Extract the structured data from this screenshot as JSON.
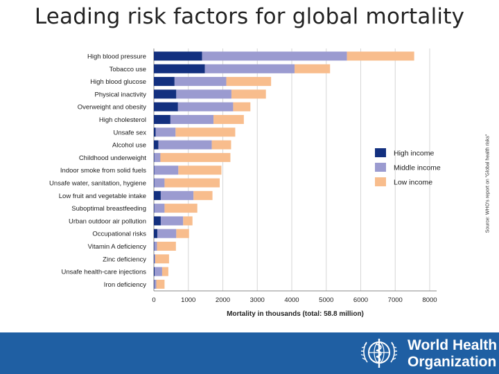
{
  "page_title": "Leading risk factors for global mortality",
  "source_note": "Source: WHO's report on \"Global health risks\"",
  "footer": {
    "org_line1": "World Health",
    "org_line2": "Organization"
  },
  "colors": {
    "high": "#13307f",
    "middle": "#9b9bd0",
    "low": "#f8bd8d",
    "footer": "#1f5fa3"
  },
  "chart_data": {
    "type": "bar",
    "orientation": "horizontal",
    "stacked": true,
    "xlabel": "Mortality in thousands (total: 58.8 million)",
    "ylabel": "",
    "xlim": [
      0,
      8000
    ],
    "xticks": [
      0,
      1000,
      2000,
      3000,
      4000,
      5000,
      6000,
      7000,
      8000
    ],
    "grid": true,
    "legend_position": "right",
    "categories": [
      "High blood pressure",
      "Tobacco use",
      "High blood glucose",
      "Physical inactivity",
      "Overweight and obesity",
      "High cholesterol",
      "Unsafe sex",
      "Alcohol use",
      "Childhood underweight",
      "Indoor smoke from solid fuels",
      "Unsafe water, sanitation, hygiene",
      "Low fruit and vegetable intake",
      "Suboptimal breastfeeding",
      "Urban outdoor air pollution",
      "Occupational risks",
      "Vitamin A deficiency",
      "Zinc deficiency",
      "Unsafe health-care injections",
      "Iron deficiency"
    ],
    "series": [
      {
        "name": "High income",
        "color_key": "high",
        "values": [
          1400,
          1480,
          600,
          650,
          700,
          480,
          50,
          130,
          10,
          10,
          10,
          200,
          10,
          200,
          100,
          10,
          10,
          20,
          10
        ]
      },
      {
        "name": "Middle income",
        "color_key": "middle",
        "values": [
          4200,
          2600,
          1500,
          1600,
          1600,
          1250,
          580,
          1550,
          180,
          700,
          300,
          950,
          300,
          650,
          550,
          80,
          30,
          220,
          60
        ]
      },
      {
        "name": "Low income",
        "color_key": "low",
        "values": [
          1950,
          1030,
          1300,
          1000,
          500,
          880,
          1730,
          560,
          2030,
          1250,
          1600,
          550,
          950,
          270,
          370,
          550,
          400,
          180,
          240
        ]
      }
    ]
  }
}
